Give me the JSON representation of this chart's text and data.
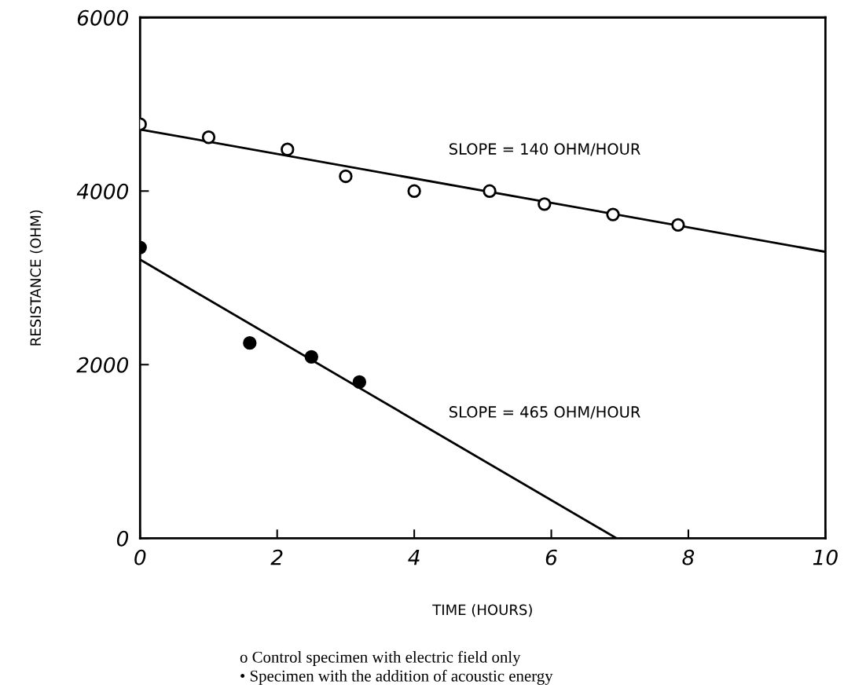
{
  "chart_data": {
    "type": "scatter",
    "xlabel": "TIME (HOURS)",
    "ylabel": "RESISTANCE (OHM)",
    "xlim": [
      0,
      10
    ],
    "xticks": [
      0,
      2,
      4,
      6,
      8,
      10
    ],
    "ylim": [
      0,
      6000
    ],
    "yticks": [
      0,
      2000,
      4000,
      6000
    ],
    "grid": false,
    "legend": false,
    "marker": "circle",
    "series": [
      {
        "color": "#ffffff",
        "x": [
          0,
          1.0,
          2.15,
          3.0,
          4.0,
          5.1,
          5.9,
          6.9,
          7.85
        ],
        "values": [
          4770,
          4620,
          4480,
          4170,
          4000,
          4000,
          3850,
          3730,
          3610
        ]
      },
      {
        "color": "#000000",
        "x": [
          0,
          1.6,
          2.5,
          3.2
        ],
        "values": [
          3350,
          2250,
          2090,
          1800
        ]
      },
      {
        "type": "line",
        "color": "#000000",
        "marker": "none",
        "x": [
          0,
          10
        ],
        "values": [
          4710,
          3300
        ]
      },
      {
        "type": "line",
        "color": "#000000",
        "marker": "none",
        "x": [
          0,
          6.95
        ],
        "values": [
          3210,
          0
        ]
      }
    ],
    "annotations": [
      "SLOPE = 140 OHM/HOUR",
      "SLOPE = 465 OHM/HOUR",
      "o Control specimen with electric field only",
      "• Specimen with the addition of acoustic energy"
    ]
  }
}
